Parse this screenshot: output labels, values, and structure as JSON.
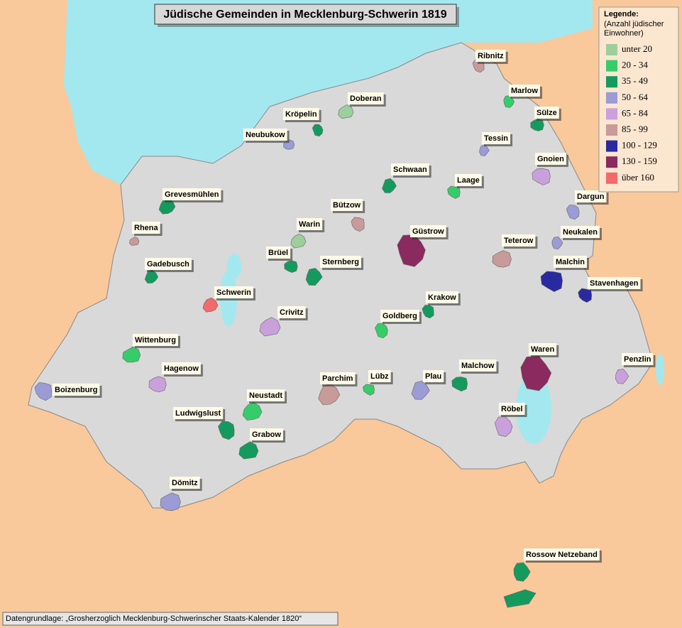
{
  "title": "Jüdische Gemeinden in Mecklenburg-Schwerin 1819",
  "legend": {
    "title": "Legende:",
    "subtitle_lines": [
      "(Anzahl jüdischer",
      "Einwohner)"
    ],
    "items": [
      {
        "label": "unter 20",
        "color": "#9ccf9c"
      },
      {
        "label": "20 - 34",
        "color": "#36cc6a"
      },
      {
        "label": "35 - 49",
        "color": "#159a5e"
      },
      {
        "label": "50 - 64",
        "color": "#9b9bd6"
      },
      {
        "label": "65 - 84",
        "color": "#c9a0dc"
      },
      {
        "label": "85 - 99",
        "color": "#c99a9a"
      },
      {
        "label": "100 - 129",
        "color": "#2a2aa0"
      },
      {
        "label": "130 - 159",
        "color": "#8b2a5e"
      },
      {
        "label": "über 160",
        "color": "#f26a6a"
      }
    ]
  },
  "places": [
    {
      "name": "Ribnitz",
      "color": "#c99a9a"
    },
    {
      "name": "Doberan",
      "color": "#9ccf9c"
    },
    {
      "name": "Kröpelin",
      "color": "#159a5e"
    },
    {
      "name": "Neubukow",
      "color": "#9b9bd6"
    },
    {
      "name": "Marlow",
      "color": "#36cc6a"
    },
    {
      "name": "Sülze",
      "color": "#159a5e"
    },
    {
      "name": "Tessin",
      "color": "#9b9bd6"
    },
    {
      "name": "Gnoien",
      "color": "#c9a0dc"
    },
    {
      "name": "Schwaan",
      "color": "#159a5e"
    },
    {
      "name": "Laage",
      "color": "#36cc6a"
    },
    {
      "name": "Grevesmühlen",
      "color": "#159a5e"
    },
    {
      "name": "Bützow",
      "color": "#c99a9a"
    },
    {
      "name": "Warin",
      "color": "#9ccf9c"
    },
    {
      "name": "Dargun",
      "color": "#9b9bd6"
    },
    {
      "name": "Rhena",
      "color": "#c99a9a"
    },
    {
      "name": "Güstrow",
      "color": "#8b2a5e"
    },
    {
      "name": "Teterow",
      "color": "#c99a9a"
    },
    {
      "name": "Neukalen",
      "color": "#9b9bd6"
    },
    {
      "name": "Brüel",
      "color": "#159a5e"
    },
    {
      "name": "Sternberg",
      "color": "#159a5e"
    },
    {
      "name": "Malchin",
      "color": "#2a2aa0"
    },
    {
      "name": "Gadebusch",
      "color": "#159a5e"
    },
    {
      "name": "Stavenhagen",
      "color": "#2a2aa0"
    },
    {
      "name": "Schwerin",
      "color": "#f26a6a"
    },
    {
      "name": "Krakow",
      "color": "#159a5e"
    },
    {
      "name": "Crivitz",
      "color": "#c9a0dc"
    },
    {
      "name": "Goldberg",
      "color": "#36cc6a"
    },
    {
      "name": "Wittenburg",
      "color": "#36cc6a"
    },
    {
      "name": "Waren",
      "color": "#8b2a5e"
    },
    {
      "name": "Hagenow",
      "color": "#c9a0dc"
    },
    {
      "name": "Penzlin",
      "color": "#c9a0dc"
    },
    {
      "name": "Malchow",
      "color": "#159a5e"
    },
    {
      "name": "Plau",
      "color": "#9b9bd6"
    },
    {
      "name": "Lübz",
      "color": "#36cc6a"
    },
    {
      "name": "Parchim",
      "color": "#c99a9a"
    },
    {
      "name": "Boizenburg",
      "color": "#9b9bd6"
    },
    {
      "name": "Neustadt",
      "color": "#36cc6a"
    },
    {
      "name": "Ludwigslust",
      "color": "#159a5e"
    },
    {
      "name": "Grabow",
      "color": "#159a5e"
    },
    {
      "name": "Röbel",
      "color": "#c9a0dc"
    },
    {
      "name": "Dömitz",
      "color": "#9b9bd6"
    },
    {
      "name": "Rossow Netzeband",
      "color": "#159a5e"
    }
  ],
  "source": "Datengrundlage: „Grosherzoglich Mecklenburg-Schwerinscher Staats-Kalender 1820“"
}
